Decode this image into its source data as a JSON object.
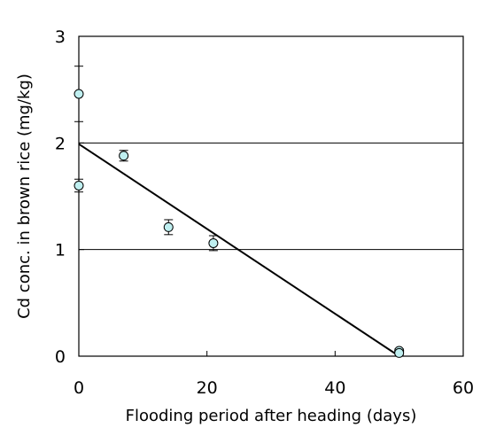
{
  "chart_data": {
    "type": "scatter",
    "title": "",
    "xlabel": "Flooding period after heading (days)",
    "ylabel": "Cd conc. in brown rice (mg/kg)",
    "xlim": [
      0,
      60
    ],
    "ylim": [
      0,
      3
    ],
    "x_ticks": [
      0,
      20,
      40,
      60
    ],
    "y_ticks": [
      0,
      1,
      2,
      3
    ],
    "x_tick_labels": [
      "0",
      "20",
      "40",
      "60"
    ],
    "y_tick_labels": [
      "0",
      "1",
      "2",
      "3"
    ],
    "gridlines_y": [
      1,
      2
    ],
    "grid": "horizontal",
    "legend": "none",
    "marker_color": "#bfeff0",
    "points": [
      {
        "x": 0,
        "y": 2.46,
        "err": 0.26
      },
      {
        "x": 0,
        "y": 1.6,
        "err": 0.06
      },
      {
        "x": 7,
        "y": 1.88,
        "err": 0.05
      },
      {
        "x": 14,
        "y": 1.21,
        "err": 0.07
      },
      {
        "x": 21,
        "y": 1.06,
        "err": 0.07
      },
      {
        "x": 50,
        "y": 0.05,
        "err": 0.02
      },
      {
        "x": 50,
        "y": 0.03,
        "err": 0.02
      }
    ],
    "trendline": {
      "x": [
        0,
        50
      ],
      "y": [
        1.99,
        0.0
      ]
    }
  }
}
